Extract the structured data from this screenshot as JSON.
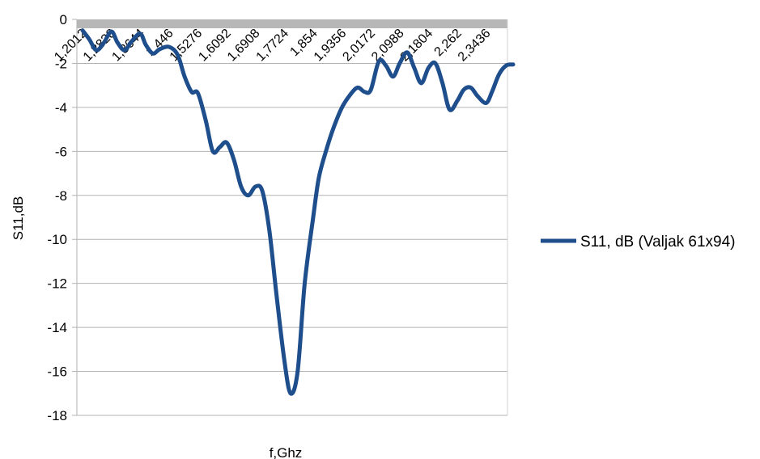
{
  "chart_data": {
    "type": "line",
    "xlabel": "f,Ghz",
    "ylabel": "S11,dB",
    "ylim": [
      -18,
      0
    ],
    "ytick_step": 2,
    "grid": "horizontal",
    "legend_position": "right",
    "series": [
      {
        "name": "S11, dB (Valjak 61x94)",
        "color": "#1f4e8c"
      }
    ],
    "x_tick_labels": [
      "1,2012",
      "1,2828",
      "1,3644",
      "1,446",
      "1,5276",
      "1,6092",
      "1,6908",
      "1,7724",
      "1,854",
      "1,9356",
      "2,0172",
      "2,0988",
      "2,1804",
      "2,262",
      "2,3436"
    ],
    "x": [
      1.2012,
      1.22,
      1.24,
      1.26,
      1.2828,
      1.3,
      1.32,
      1.34,
      1.3644,
      1.38,
      1.4,
      1.42,
      1.446,
      1.47,
      1.49,
      1.51,
      1.5276,
      1.55,
      1.57,
      1.59,
      1.6092,
      1.63,
      1.65,
      1.67,
      1.6908,
      1.71,
      1.73,
      1.75,
      1.7724,
      1.79,
      1.81,
      1.83,
      1.854,
      1.87,
      1.89,
      1.91,
      1.9356,
      1.96,
      1.98,
      2.0,
      2.0172,
      2.04,
      2.06,
      2.08,
      2.0988,
      2.12,
      2.14,
      2.16,
      2.1804,
      2.2,
      2.22,
      2.24,
      2.262,
      2.28,
      2.3,
      2.32,
      2.3436,
      2.36,
      2.38,
      2.4,
      2.42
    ],
    "values": [
      -0.5,
      -0.9,
      -1.4,
      -1.1,
      -0.55,
      -1.05,
      -1.4,
      -1.0,
      -0.65,
      -1.15,
      -1.55,
      -1.35,
      -1.25,
      -1.6,
      -2.6,
      -3.3,
      -3.35,
      -4.6,
      -6.0,
      -5.8,
      -5.6,
      -6.4,
      -7.6,
      -8.0,
      -7.6,
      -7.8,
      -9.6,
      -12.5,
      -15.5,
      -17.0,
      -16.0,
      -12.0,
      -9.0,
      -7.2,
      -6.0,
      -5.0,
      -4.0,
      -3.4,
      -3.1,
      -3.3,
      -3.2,
      -1.9,
      -2.1,
      -2.6,
      -2.0,
      -1.5,
      -2.2,
      -2.9,
      -2.2,
      -2.0,
      -2.9,
      -4.1,
      -3.7,
      -3.2,
      -3.1,
      -3.5,
      -3.8,
      -3.3,
      -2.5,
      -2.1,
      -2.05
    ]
  }
}
